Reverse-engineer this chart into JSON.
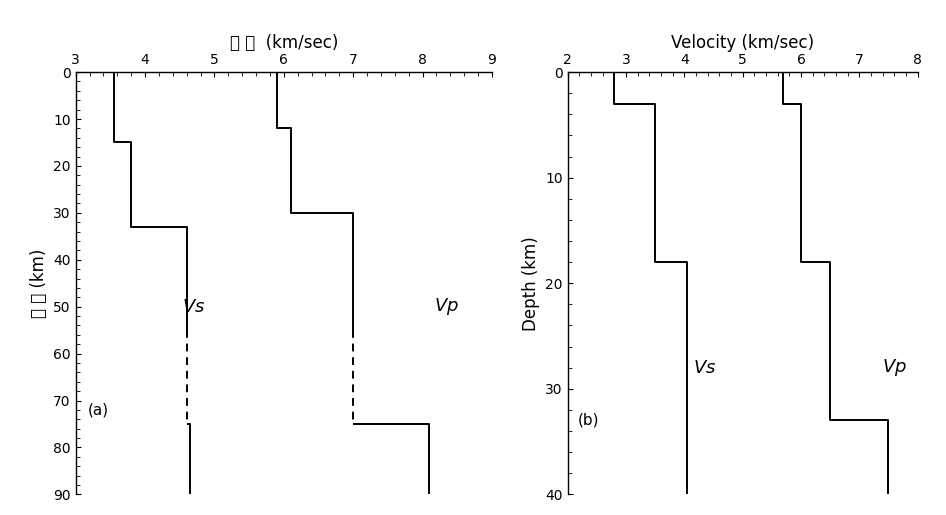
{
  "panel_a": {
    "title": "속 도  (km/sec)",
    "ylabel": "깊 이 (km)",
    "xlim": [
      3,
      9
    ],
    "ylim": [
      90,
      0
    ],
    "xticks": [
      3,
      4,
      5,
      6,
      7,
      8,
      9
    ],
    "yticks": [
      0,
      10,
      20,
      30,
      40,
      50,
      60,
      70,
      80,
      90
    ],
    "vs_solid1_v": [
      3.55,
      3.55,
      3.8,
      3.8,
      4.6,
      4.6
    ],
    "vs_solid1_d": [
      0,
      15,
      15,
      33,
      33,
      55
    ],
    "vs_dashed_v": [
      4.6,
      4.6
    ],
    "vs_dashed_d": [
      55,
      75
    ],
    "vs_solid2_v": [
      4.6,
      4.65,
      4.65
    ],
    "vs_solid2_d": [
      75,
      75,
      90
    ],
    "vp_solid1_v": [
      5.9,
      5.9,
      6.1,
      6.1,
      7.0,
      7.0
    ],
    "vp_solid1_d": [
      0,
      12,
      12,
      30,
      30,
      55
    ],
    "vp_dashed_v": [
      7.0,
      7.0
    ],
    "vp_dashed_d": [
      55,
      75
    ],
    "vp_solid2_v": [
      7.0,
      8.1,
      8.1
    ],
    "vp_solid2_d": [
      75,
      75,
      90
    ],
    "vs_label": [
      4.7,
      50
    ],
    "vp_label": [
      8.35,
      50
    ],
    "a_label": [
      3.18,
      72
    ]
  },
  "panel_b": {
    "title": "Velocity (km/sec)",
    "ylabel": "Depth (km)",
    "xlim": [
      2,
      8
    ],
    "ylim": [
      40,
      0
    ],
    "xticks": [
      2,
      3,
      4,
      5,
      6,
      7,
      8
    ],
    "yticks": [
      0,
      10,
      20,
      30,
      40
    ],
    "vs_v": [
      2.8,
      2.8,
      3.5,
      3.5,
      4.05,
      4.05
    ],
    "vs_d": [
      0,
      3,
      3,
      18,
      18,
      40
    ],
    "vp_v": [
      5.7,
      5.7,
      6.0,
      6.0,
      6.5,
      6.5,
      7.5,
      7.5
    ],
    "vp_d": [
      0,
      3,
      3,
      18,
      18,
      33,
      33,
      40
    ],
    "vs_label": [
      4.35,
      28
    ],
    "vp_label": [
      7.6,
      28
    ],
    "b_label": [
      2.18,
      33
    ]
  },
  "line_color": "#000000",
  "line_width": 1.4,
  "label_fontsize": 13,
  "tick_fontsize": 10,
  "title_fontsize": 12,
  "ylabel_fontsize": 12,
  "annot_fontsize": 11
}
